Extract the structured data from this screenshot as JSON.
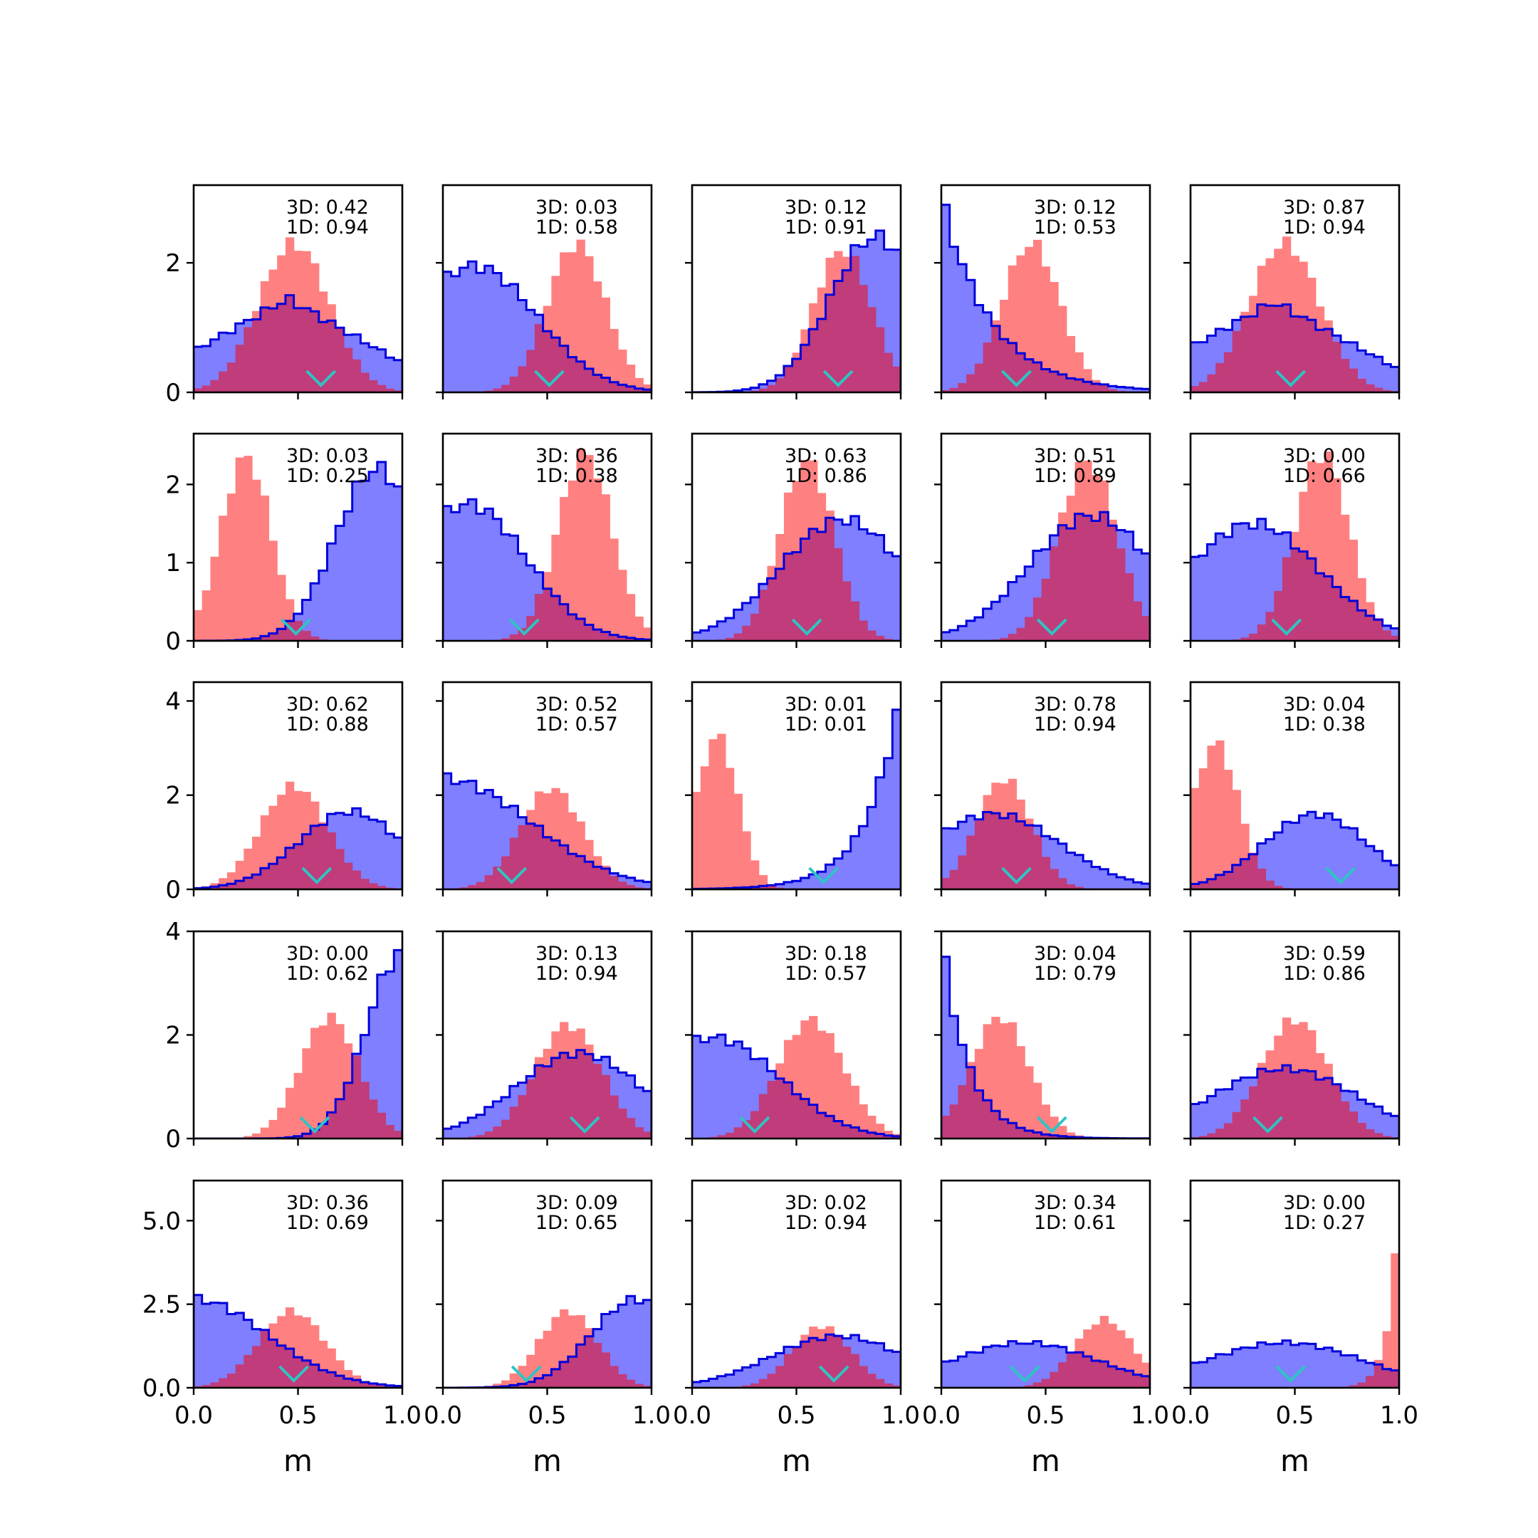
{
  "chart_data": {
    "type": "histogram-grid",
    "rows": 5,
    "cols": 5,
    "xlabel": "m",
    "xlim": [
      0,
      1
    ],
    "xticks": [
      "0.0",
      "0.5",
      "1.0"
    ],
    "row_ylim": [
      [
        0,
        3.2
      ],
      [
        0,
        2.65
      ],
      [
        0,
        4.4
      ],
      [
        0,
        4.0
      ],
      [
        0,
        6.2
      ]
    ],
    "row_yticks": [
      [
        "0",
        "2"
      ],
      [
        "0",
        "1",
        "2"
      ],
      [
        "0",
        "2",
        "4"
      ],
      [
        "0",
        "2",
        "4"
      ],
      [
        "0.0",
        "2.5",
        "5.0"
      ]
    ],
    "row_ytick_values": [
      [
        0,
        2
      ],
      [
        0,
        1,
        2
      ],
      [
        0,
        2,
        4
      ],
      [
        0,
        2,
        4
      ],
      [
        0,
        2.5,
        5
      ]
    ],
    "colors": {
      "blue_fill": "#7f7fff",
      "blue_edge": "#0000dd",
      "red_fill": "#ff8080",
      "overlap_fill": "#c03c7a",
      "marker": "#2ec4c4"
    },
    "series_shapes": [
      "blue histogram (step outline)",
      "red histogram (filled)"
    ],
    "panels": [
      {
        "ann3d": "3D: 0.42",
        "ann1d": "1D: 0.94",
        "blue": {
          "type": "tri",
          "c": 0.45,
          "w": 0.8,
          "h": 1.45,
          "base": 0.3
        },
        "red": {
          "type": "g",
          "mu": 0.48,
          "sig": 0.17,
          "h": 2.3
        },
        "marker": 0.61
      },
      {
        "ann3d": "3D: 0.03",
        "ann1d": "1D: 0.58",
        "blue": {
          "type": "g",
          "mu": 0.15,
          "sig": 0.3,
          "h": 1.95
        },
        "red": {
          "type": "g",
          "mu": 0.64,
          "sig": 0.14,
          "h": 2.3
        },
        "marker": 0.51
      },
      {
        "ann3d": "3D: 0.12",
        "ann1d": "1D: 0.91",
        "blue": {
          "type": "g",
          "mu": 0.88,
          "sig": 0.22,
          "h": 2.4
        },
        "red": {
          "type": "g",
          "mu": 0.72,
          "sig": 0.14,
          "h": 2.2
        },
        "marker": 0.7
      },
      {
        "ann3d": "3D: 0.12",
        "ann1d": "1D: 0.53",
        "blue": {
          "type": "exp",
          "h": 3.0,
          "tau": 0.24
        },
        "red": {
          "type": "g",
          "mu": 0.43,
          "sig": 0.14,
          "h": 2.3
        },
        "marker": 0.36
      },
      {
        "ann3d": "3D: 0.87",
        "ann1d": "1D: 0.94",
        "blue": {
          "type": "tri",
          "c": 0.4,
          "w": 0.8,
          "h": 1.4,
          "base": 0.2
        },
        "red": {
          "type": "g",
          "mu": 0.45,
          "sig": 0.17,
          "h": 2.3
        },
        "marker": 0.48
      },
      {
        "ann3d": "3D: 0.03",
        "ann1d": "1D: 0.25",
        "blue": {
          "type": "g",
          "mu": 0.88,
          "sig": 0.2,
          "h": 2.2
        },
        "red": {
          "type": "g",
          "mu": 0.25,
          "sig": 0.12,
          "h": 2.35
        },
        "marker": 0.49
      },
      {
        "ann3d": "3D: 0.36",
        "ann1d": "1D: 0.38",
        "blue": {
          "type": "g",
          "mu": 0.12,
          "sig": 0.28,
          "h": 1.75
        },
        "red": {
          "type": "g",
          "mu": 0.68,
          "sig": 0.13,
          "h": 2.4
        },
        "marker": 0.39
      },
      {
        "ann3d": "3D: 0.63",
        "ann1d": "1D: 0.86",
        "blue": {
          "type": "g",
          "mu": 0.72,
          "sig": 0.3,
          "h": 1.55
        },
        "red": {
          "type": "g",
          "mu": 0.55,
          "sig": 0.13,
          "h": 2.3
        },
        "marker": 0.55
      },
      {
        "ann3d": "3D: 0.51",
        "ann1d": "1D: 0.89",
        "blue": {
          "type": "g",
          "mu": 0.72,
          "sig": 0.3,
          "h": 1.6
        },
        "red": {
          "type": "g",
          "mu": 0.7,
          "sig": 0.14,
          "h": 2.3
        },
        "marker": 0.53
      },
      {
        "ann3d": "3D: 0.00",
        "ann1d": "1D: 0.66",
        "blue": {
          "type": "g",
          "mu": 0.3,
          "sig": 0.32,
          "h": 1.5
        },
        "red": {
          "type": "g",
          "mu": 0.63,
          "sig": 0.13,
          "h": 2.4
        },
        "marker": 0.46
      },
      {
        "ann3d": "3D: 0.62",
        "ann1d": "1D: 0.88",
        "blue": {
          "type": "g",
          "mu": 0.75,
          "sig": 0.25,
          "h": 1.65
        },
        "red": {
          "type": "g",
          "mu": 0.48,
          "sig": 0.16,
          "h": 2.2
        },
        "marker": 0.59
      },
      {
        "ann3d": "3D: 0.52",
        "ann1d": "1D: 0.57",
        "blue": {
          "type": "g",
          "mu": 0.0,
          "sig": 0.42,
          "h": 2.35
        },
        "red": {
          "type": "g",
          "mu": 0.52,
          "sig": 0.15,
          "h": 2.15
        },
        "marker": 0.33
      },
      {
        "ann3d": "3D: 0.01",
        "ann1d": "1D: 0.01",
        "blue": {
          "type": "expr",
          "h": 4.25,
          "tau": 0.16
        },
        "red": {
          "type": "g",
          "mu": 0.12,
          "sig": 0.1,
          "h": 3.25
        },
        "marker": 0.63
      },
      {
        "ann3d": "3D: 0.78",
        "ann1d": "1D: 0.94",
        "blue": {
          "type": "g",
          "mu": 0.25,
          "sig": 0.32,
          "h": 1.6
        },
        "red": {
          "type": "g",
          "mu": 0.3,
          "sig": 0.13,
          "h": 2.35
        },
        "marker": 0.36
      },
      {
        "ann3d": "3D: 0.04",
        "ann1d": "1D: 0.38",
        "blue": {
          "type": "g",
          "mu": 0.6,
          "sig": 0.25,
          "h": 1.6
        },
        "red": {
          "type": "g",
          "mu": 0.12,
          "sig": 0.11,
          "h": 3.1
        },
        "marker": 0.72
      },
      {
        "ann3d": "3D: 0.00",
        "ann1d": "1D: 0.62",
        "blue": {
          "type": "g",
          "mu": 1.0,
          "sig": 0.17,
          "h": 3.6
        },
        "red": {
          "type": "g",
          "mu": 0.65,
          "sig": 0.14,
          "h": 2.35
        },
        "marker": 0.58
      },
      {
        "ann3d": "3D: 0.13",
        "ann1d": "1D: 0.94",
        "blue": {
          "type": "g",
          "mu": 0.65,
          "sig": 0.3,
          "h": 1.65
        },
        "red": {
          "type": "g",
          "mu": 0.6,
          "sig": 0.16,
          "h": 2.2
        },
        "marker": 0.68
      },
      {
        "ann3d": "3D: 0.18",
        "ann1d": "1D: 0.57",
        "blue": {
          "type": "g",
          "mu": 0.1,
          "sig": 0.32,
          "h": 1.95
        },
        "red": {
          "type": "g",
          "mu": 0.57,
          "sig": 0.16,
          "h": 2.3
        },
        "marker": 0.3
      },
      {
        "ann3d": "3D: 0.04",
        "ann1d": "1D: 0.79",
        "blue": {
          "type": "exp",
          "h": 3.9,
          "tau": 0.13
        },
        "red": {
          "type": "g",
          "mu": 0.28,
          "sig": 0.14,
          "h": 2.35
        },
        "marker": 0.53
      },
      {
        "ann3d": "3D: 0.59",
        "ann1d": "1D: 0.86",
        "blue": {
          "type": "g",
          "mu": 0.45,
          "sig": 0.35,
          "h": 1.35
        },
        "red": {
          "type": "g",
          "mu": 0.5,
          "sig": 0.16,
          "h": 2.3
        },
        "marker": 0.37
      },
      {
        "ann3d": "3D: 0.36",
        "ann1d": "1D: 0.69",
        "blue": {
          "type": "g",
          "mu": 0.0,
          "sig": 0.35,
          "h": 2.65
        },
        "red": {
          "type": "g",
          "mu": 0.47,
          "sig": 0.16,
          "h": 2.3
        },
        "marker": 0.48
      },
      {
        "ann3d": "3D: 0.09",
        "ann1d": "1D: 0.65",
        "blue": {
          "type": "g",
          "mu": 0.93,
          "sig": 0.22,
          "h": 2.65
        },
        "red": {
          "type": "g",
          "mu": 0.6,
          "sig": 0.14,
          "h": 2.3
        },
        "marker": 0.4
      },
      {
        "ann3d": "3D: 0.02",
        "ann1d": "1D: 0.94",
        "blue": {
          "type": "g",
          "mu": 0.7,
          "sig": 0.32,
          "h": 1.55
        },
        "red": {
          "type": "g",
          "mu": 0.62,
          "sig": 0.14,
          "h": 1.85
        },
        "marker": 0.68
      },
      {
        "ann3d": "3D: 0.34",
        "ann1d": "1D: 0.61",
        "blue": {
          "type": "g",
          "mu": 0.4,
          "sig": 0.35,
          "h": 1.35
        },
        "red": {
          "type": "g",
          "mu": 0.78,
          "sig": 0.14,
          "h": 2.05
        },
        "marker": 0.4
      },
      {
        "ann3d": "3D: 0.00",
        "ann1d": "1D: 0.27",
        "blue": {
          "type": "g",
          "mu": 0.45,
          "sig": 0.38,
          "h": 1.35
        },
        "red": {
          "type": "expr",
          "h": 5.9,
          "tau": 0.05
        },
        "marker": 0.48
      }
    ]
  }
}
